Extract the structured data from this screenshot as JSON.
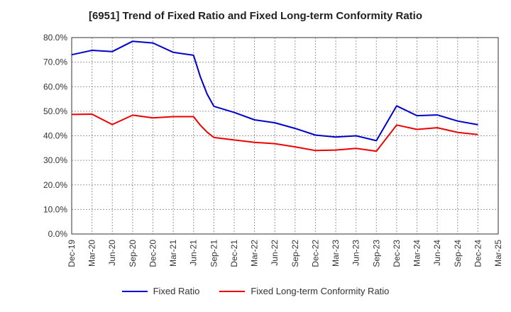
{
  "chart_data": {
    "type": "line",
    "title": "[6951]  Trend of Fixed Ratio and Fixed Long-term Conformity Ratio",
    "xlabel": "",
    "ylabel": "",
    "x_tick_labels": [
      "Dec-19",
      "Mar-20",
      "Jun-20",
      "Sep-20",
      "Dec-20",
      "Mar-21",
      "Jun-21",
      "Sep-21",
      "Dec-21",
      "Mar-22",
      "Jun-22",
      "Sep-22",
      "Dec-22",
      "Mar-23",
      "Jun-23",
      "Sep-23",
      "Dec-23",
      "Mar-24",
      "Jun-24",
      "Sep-24",
      "Dec-24",
      "Mar-25"
    ],
    "y_ticks": [
      0,
      10,
      20,
      30,
      40,
      50,
      60,
      70,
      80
    ],
    "y_tick_labels": [
      "0.0%",
      "10.0%",
      "20.0%",
      "30.0%",
      "40.0%",
      "50.0%",
      "60.0%",
      "70.0%",
      "80.0%"
    ],
    "ylim": [
      0,
      80
    ],
    "grid": true,
    "legend_position": "bottom",
    "series": [
      {
        "name": "Fixed Ratio",
        "color": "#0000cc",
        "x": [
          "Dec-19",
          "Mar-20",
          "Jun-20",
          "Sep-20",
          "Dec-20",
          "Mar-21",
          "Jun-21",
          "Jul-21",
          "Aug-21",
          "Sep-21",
          "Dec-21",
          "Mar-22",
          "Jun-22",
          "Sep-22",
          "Dec-22",
          "Mar-23",
          "Jun-23",
          "Sep-23",
          "Dec-23",
          "Mar-24",
          "Jun-24",
          "Sep-24",
          "Dec-24"
        ],
        "values": [
          73.0,
          74.8,
          74.3,
          78.5,
          77.8,
          74.0,
          72.8,
          64.0,
          57.0,
          52.0,
          49.5,
          46.5,
          45.3,
          43.0,
          40.3,
          39.5,
          40.0,
          38.0,
          52.2,
          48.2,
          48.5,
          46.0,
          44.5
        ]
      },
      {
        "name": "Fixed Long-term Conformity Ratio",
        "color": "#ee0000",
        "x": [
          "Dec-19",
          "Mar-20",
          "Jun-20",
          "Sep-20",
          "Dec-20",
          "Mar-21",
          "Jun-21",
          "Jul-21",
          "Aug-21",
          "Sep-21",
          "Dec-21",
          "Mar-22",
          "Jun-22",
          "Sep-22",
          "Dec-22",
          "Mar-23",
          "Jun-23",
          "Sep-23",
          "Dec-23",
          "Mar-24",
          "Jun-24",
          "Sep-24",
          "Dec-24"
        ],
        "values": [
          48.7,
          48.8,
          44.6,
          48.4,
          47.3,
          47.8,
          47.8,
          44.3,
          41.5,
          39.3,
          38.3,
          37.3,
          36.8,
          35.5,
          34.0,
          34.2,
          34.9,
          33.7,
          44.4,
          42.6,
          43.3,
          41.4,
          40.5
        ]
      }
    ]
  }
}
